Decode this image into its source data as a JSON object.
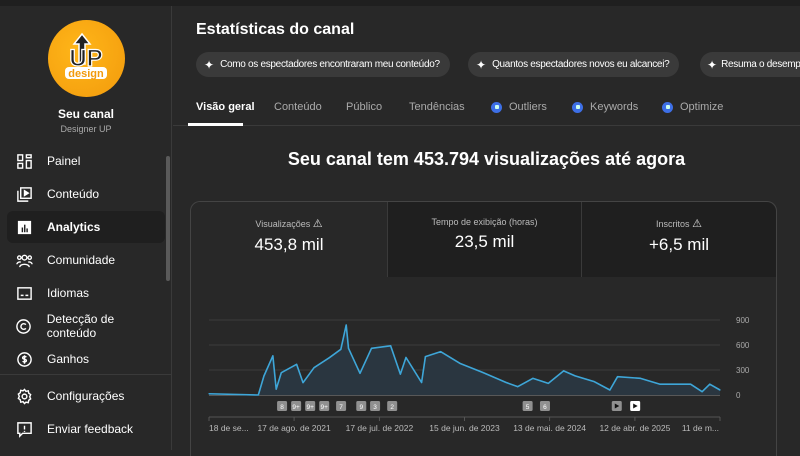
{
  "sidebar": {
    "logo_text": "UP design",
    "channel_title": "Seu canal",
    "channel_name": "Designer UP",
    "items": [
      {
        "label": "Painel",
        "icon": "dashboard-icon"
      },
      {
        "label": "Conteúdo",
        "icon": "content-icon"
      },
      {
        "label": "Analytics",
        "icon": "analytics-icon",
        "active": true
      },
      {
        "label": "Comunidade",
        "icon": "community-icon"
      },
      {
        "label": "Idiomas",
        "icon": "subtitles-icon"
      },
      {
        "label": "Detecção de conteúdo",
        "icon": "copyright-icon"
      },
      {
        "label": "Ganhos",
        "icon": "dollar-icon"
      }
    ],
    "bottom_items": [
      {
        "label": "Configurações",
        "icon": "gear-icon"
      },
      {
        "label": "Enviar feedback",
        "icon": "feedback-icon"
      }
    ]
  },
  "main": {
    "title": "Estatísticas do canal",
    "chips": [
      "Como os espectadores encontraram meu conteúdo?",
      "Quantos espectadores novos eu alcancei?",
      "Resuma o desemp"
    ],
    "tabs": [
      "Visão geral",
      "Conteúdo",
      "Público",
      "Tendências",
      "Outliers",
      "Keywords",
      "Optimize"
    ],
    "headline": "Seu canal tem 453.794 visualizações até agora",
    "metrics": [
      {
        "label": "Visualizações",
        "value": "453,8 mil",
        "warning": true
      },
      {
        "label": "Tempo de exibição (horas)",
        "value": "23,5 mil",
        "warning": false
      },
      {
        "label": "Inscritos",
        "value": "+6,5 mil",
        "warning": true
      }
    ]
  },
  "colors": {
    "line": "#3ea6d8",
    "fill": "#2a3640",
    "accent": "#3d6fe6"
  },
  "chart_data": {
    "type": "area",
    "xlim": [
      "2020-09-18",
      "2026-03-11"
    ],
    "ylim": [
      0,
      900
    ],
    "yticks": [
      0,
      300,
      600,
      900
    ],
    "xticks": [
      {
        "date": "2020-09-18",
        "label": "18 de se..."
      },
      {
        "date": "2021-08-17",
        "label": "17 de ago. de 2021"
      },
      {
        "date": "2022-07-17",
        "label": "17 de jul. de 2022"
      },
      {
        "date": "2023-06-15",
        "label": "15 de jun. de 2023"
      },
      {
        "date": "2024-05-13",
        "label": "13 de mai. de 2024"
      },
      {
        "date": "2025-04-12",
        "label": "12 de abr. de 2025"
      },
      {
        "date": "2026-03-11",
        "label": "11 de m..."
      }
    ],
    "grid": true,
    "points": [
      [
        "2020-09-18",
        15
      ],
      [
        "2021-03-30",
        0
      ],
      [
        "2021-04-21",
        228
      ],
      [
        "2021-05-26",
        470
      ],
      [
        "2021-06-08",
        70
      ],
      [
        "2021-06-28",
        268
      ],
      [
        "2021-08-27",
        368
      ],
      [
        "2021-09-21",
        148
      ],
      [
        "2021-11-03",
        328
      ],
      [
        "2022-01-02",
        448
      ],
      [
        "2022-02-16",
        548
      ],
      [
        "2022-03-09",
        840
      ],
      [
        "2022-03-18",
        560
      ],
      [
        "2022-05-02",
        260
      ],
      [
        "2022-06-16",
        560
      ],
      [
        "2022-08-30",
        590
      ],
      [
        "2022-10-07",
        250
      ],
      [
        "2022-10-29",
        450
      ],
      [
        "2022-12-29",
        150
      ],
      [
        "2023-01-13",
        460
      ],
      [
        "2023-03-14",
        520
      ],
      [
        "2023-05-28",
        380
      ],
      [
        "2023-08-26",
        270
      ],
      [
        "2023-11-25",
        150
      ],
      [
        "2024-01-09",
        100
      ],
      [
        "2024-03-09",
        200
      ],
      [
        "2024-05-08",
        140
      ],
      [
        "2024-07-07",
        290
      ],
      [
        "2024-08-21",
        230
      ],
      [
        "2024-11-04",
        160
      ],
      [
        "2025-01-04",
        60
      ],
      [
        "2025-02-03",
        220
      ],
      [
        "2025-05-04",
        200
      ],
      [
        "2025-07-18",
        130
      ],
      [
        "2025-11-16",
        130
      ],
      [
        "2025-12-31",
        40
      ],
      [
        "2026-01-30",
        130
      ],
      [
        "2026-03-11",
        60
      ]
    ],
    "markers": [
      {
        "date": "2021-07-01",
        "label": "8"
      },
      {
        "date": "2021-08-25",
        "label": "9+"
      },
      {
        "date": "2021-10-19",
        "label": "9+"
      },
      {
        "date": "2021-12-13",
        "label": "9+"
      },
      {
        "date": "2022-02-17",
        "label": "7"
      },
      {
        "date": "2022-05-07",
        "label": "9"
      },
      {
        "date": "2022-06-30",
        "label": "3"
      },
      {
        "date": "2022-09-05",
        "label": "2"
      },
      {
        "date": "2024-02-17",
        "label": "5"
      },
      {
        "date": "2024-04-25",
        "label": "6"
      },
      {
        "date": "2025-01-31",
        "label": "play",
        "icon": "play-icon"
      },
      {
        "date": "2025-04-13",
        "label": "play",
        "icon": "play-icon",
        "selected": true
      }
    ]
  }
}
